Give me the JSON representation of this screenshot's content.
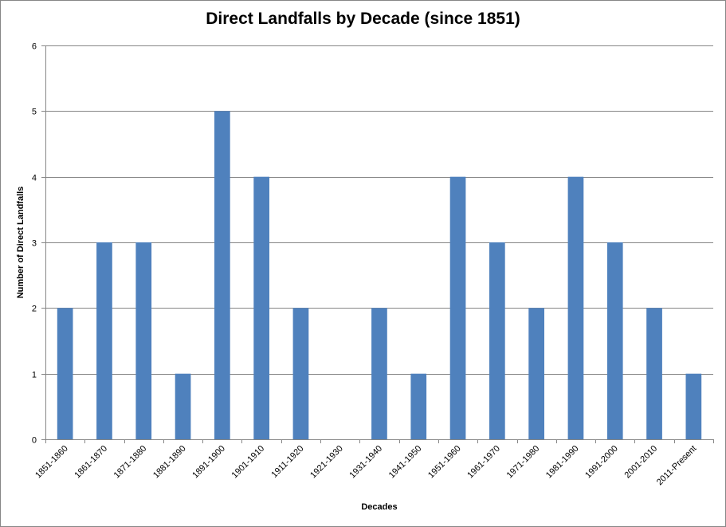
{
  "chart_data": {
    "type": "bar",
    "title": "Direct Landfalls by Decade (since 1851)",
    "xlabel": "Decades",
    "ylabel": "Number of Direct Landfalls",
    "categories": [
      "1851-1860",
      "1861-1870",
      "1871-1880",
      "1881-1890",
      "1891-1900",
      "1901-1910",
      "1911-1920",
      "1921-1930",
      "1931-1940",
      "1941-1950",
      "1951-1960",
      "1961-1970",
      "1971-1980",
      "1981-1990",
      "1991-2000",
      "2001-2010",
      "2011-Present"
    ],
    "values": [
      2,
      3,
      3,
      1,
      5,
      4,
      2,
      0,
      2,
      1,
      4,
      3,
      2,
      4,
      3,
      2,
      1
    ],
    "ylim": [
      0,
      6
    ],
    "yticks": [
      0,
      1,
      2,
      3,
      4,
      5,
      6
    ],
    "grid": true,
    "legend": "none",
    "bar_color": "#4F81BD",
    "grid_color": "#868686"
  }
}
